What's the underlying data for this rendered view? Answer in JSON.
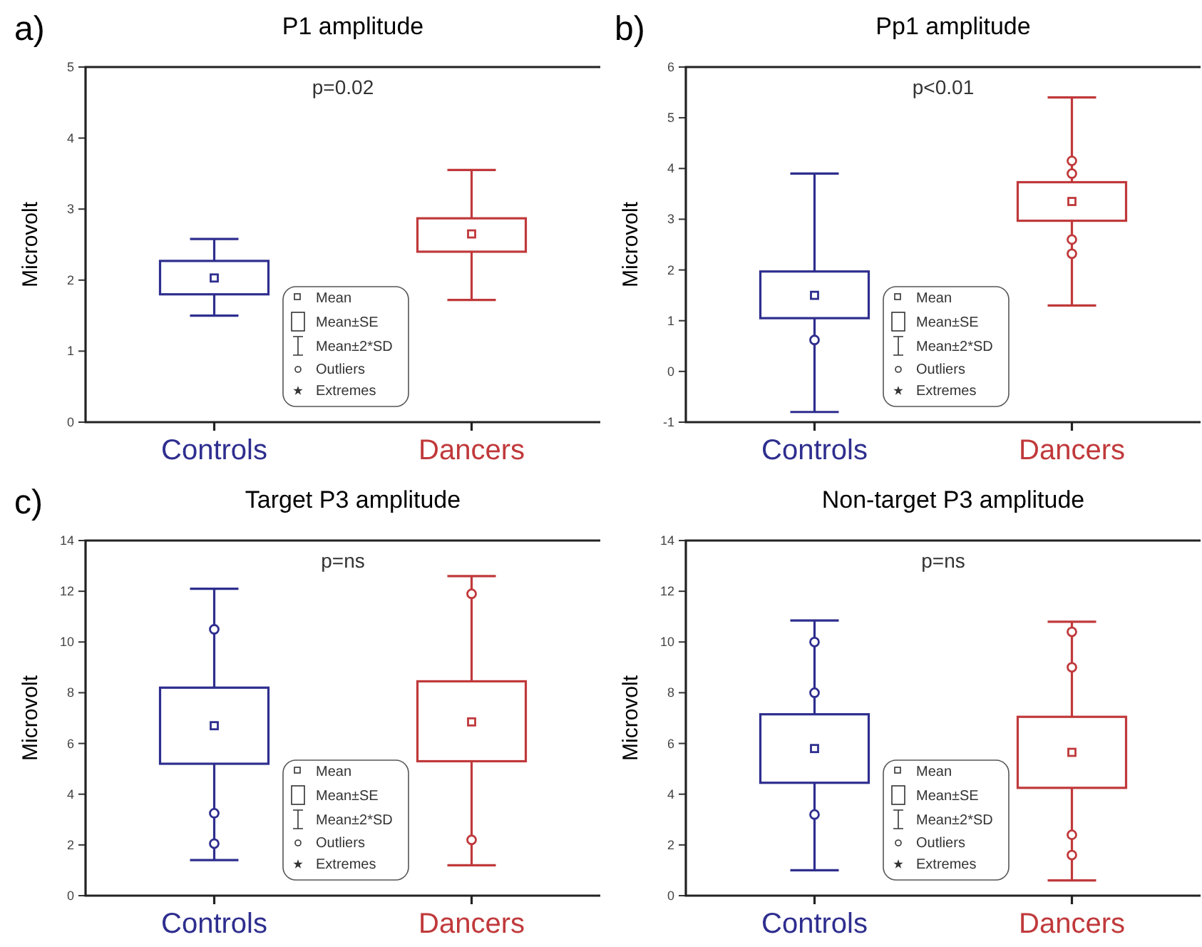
{
  "chart_data": [
    {
      "type": "box",
      "title": "P1 amplitude",
      "ylabel": "Microvolt",
      "categories": [
        "Controls",
        "Dancers"
      ],
      "colors": [
        "#2e2e8f",
        "#c0393b"
      ],
      "ylim": [
        0,
        5
      ],
      "yticks": [
        0,
        1,
        2,
        3,
        4,
        5
      ],
      "annotations": [
        "a)",
        "p=0.02",
        "Mean",
        "Mean±SE",
        "Mean±2*SD",
        "Outliers",
        "Extremes"
      ],
      "boxes": [
        {
          "low": 1.5,
          "q1": 1.8,
          "q3": 2.27,
          "high": 2.58,
          "mean": 2.03
        },
        {
          "low": 1.72,
          "q1": 2.4,
          "q3": 2.87,
          "high": 3.55,
          "mean": 2.65
        }
      ]
    },
    {
      "type": "box",
      "title": "Pp1 amplitude",
      "ylabel": "Microvolt",
      "categories": [
        "Controls",
        "Dancers"
      ],
      "colors": [
        "#2e2e8f",
        "#c0393b"
      ],
      "ylim": [
        -1,
        6
      ],
      "yticks": [
        -1,
        0,
        1,
        2,
        3,
        4,
        5,
        6
      ],
      "annotations": [
        "b)",
        "p<0.01",
        "Mean",
        "Mean±SE",
        "Mean±2*SD",
        "Outliers",
        "Extremes"
      ],
      "boxes": [
        {
          "low": -0.8,
          "q1": 1.05,
          "q3": 1.97,
          "high": 3.9,
          "mean": 1.5,
          "outliers": [
            0.62
          ]
        },
        {
          "low": 1.3,
          "q1": 2.97,
          "q3": 3.73,
          "high": 5.4,
          "mean": 3.35,
          "outliers": [
            4.15,
            3.9,
            2.6,
            2.32
          ]
        }
      ]
    },
    {
      "type": "box",
      "title": "Target P3 amplitude",
      "ylabel": "Microvolt",
      "categories": [
        "Controls",
        "Dancers"
      ],
      "colors": [
        "#2e2e8f",
        "#c0393b"
      ],
      "ylim": [
        0,
        14
      ],
      "yticks": [
        0,
        2,
        4,
        6,
        8,
        10,
        12,
        14
      ],
      "annotations": [
        "c)",
        "p=ns",
        "Mean",
        "Mean±SE",
        "Mean±2*SD",
        "Outliers",
        "Extremes"
      ],
      "boxes": [
        {
          "low": 1.4,
          "q1": 5.2,
          "q3": 8.2,
          "high": 12.1,
          "mean": 6.7,
          "outliers": [
            10.5,
            3.25,
            2.05
          ]
        },
        {
          "low": 1.2,
          "q1": 5.3,
          "q3": 8.45,
          "high": 12.6,
          "mean": 6.85,
          "outliers": [
            11.9,
            2.2
          ]
        }
      ]
    },
    {
      "type": "box",
      "title": "Non-target P3 amplitude",
      "ylabel": "Microvolt",
      "categories": [
        "Controls",
        "Dancers"
      ],
      "colors": [
        "#2e2e8f",
        "#c0393b"
      ],
      "ylim": [
        0,
        14
      ],
      "yticks": [
        0,
        2,
        4,
        6,
        8,
        10,
        12,
        14
      ],
      "annotations": [
        "p=ns",
        "Mean",
        "Mean±SE",
        "Mean±2*SD",
        "Outliers",
        "Extremes"
      ],
      "boxes": [
        {
          "low": 1.0,
          "q1": 4.45,
          "q3": 7.15,
          "high": 10.85,
          "mean": 5.8,
          "outliers": [
            10.0,
            8.0,
            3.2
          ]
        },
        {
          "low": 0.6,
          "q1": 4.25,
          "q3": 7.05,
          "high": 10.8,
          "mean": 5.65,
          "outliers": [
            10.4,
            9.0,
            2.4,
            1.6
          ]
        }
      ]
    }
  ]
}
